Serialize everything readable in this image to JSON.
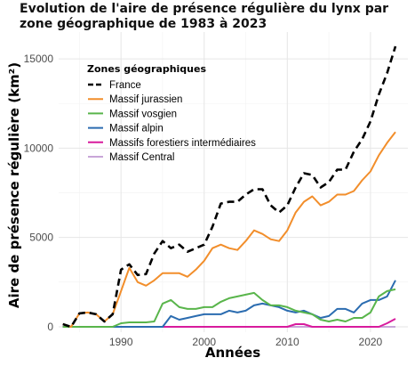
{
  "chart_data": {
    "type": "line",
    "title": "Evolution de l'aire de présence régulière du lynx par zone géographique de 1983 à 2023",
    "xlabel": "Années",
    "ylabel": "Aire de présence régulière (km²)",
    "xlim": [
      1982.5,
      2024.5
    ],
    "ylim": [
      -300,
      16500
    ],
    "x_ticks": [
      1990,
      2000,
      2010,
      2020
    ],
    "y_ticks": [
      0,
      5000,
      10000,
      15000
    ],
    "x_tick_labels": [
      "1990",
      "2000",
      "2010",
      "2020"
    ],
    "y_tick_labels": [
      "0",
      "5000",
      "10000",
      "15000"
    ],
    "grid": true,
    "legend": {
      "title": "Zones géographiques",
      "position": "top-left"
    },
    "x": [
      1983,
      1984,
      1985,
      1986,
      1987,
      1988,
      1989,
      1990,
      1991,
      1992,
      1993,
      1994,
      1995,
      1996,
      1997,
      1998,
      1999,
      2000,
      2001,
      2002,
      2003,
      2004,
      2005,
      2006,
      2007,
      2008,
      2009,
      2010,
      2011,
      2012,
      2013,
      2014,
      2015,
      2016,
      2017,
      2018,
      2019,
      2020,
      2021,
      2022,
      2023
    ],
    "series": [
      {
        "name": "France",
        "color": "#000000",
        "dash": true,
        "values": [
          150,
          0,
          750,
          800,
          700,
          300,
          700,
          3200,
          3500,
          2900,
          2950,
          4100,
          4800,
          4400,
          4600,
          4200,
          4400,
          4600,
          5600,
          6900,
          7000,
          7000,
          7400,
          7700,
          7700,
          6800,
          6400,
          6800,
          7800,
          8600,
          8500,
          7800,
          8100,
          8800,
          8800,
          9800,
          10500,
          11500,
          13000,
          14200,
          15700
        ]
      },
      {
        "name": "Massif jurassien",
        "color": "#f28e2b",
        "dash": false,
        "values": [
          150,
          0,
          750,
          800,
          700,
          300,
          700,
          2000,
          3300,
          2500,
          2300,
          2600,
          3000,
          3000,
          3000,
          2800,
          3200,
          3700,
          4400,
          4600,
          4400,
          4300,
          4800,
          5400,
          5200,
          4900,
          4800,
          5400,
          6400,
          7000,
          7300,
          6800,
          7000,
          7400,
          7400,
          7600,
          8200,
          8700,
          9600,
          10300,
          10900
        ]
      },
      {
        "name": "Massif vosgien",
        "color": "#59b54b",
        "dash": false,
        "values": [
          0,
          0,
          0,
          0,
          0,
          0,
          0,
          200,
          250,
          250,
          250,
          300,
          1300,
          1500,
          1100,
          1000,
          1000,
          1100,
          1100,
          1400,
          1600,
          1700,
          1800,
          1900,
          1500,
          1200,
          1200,
          1100,
          900,
          800,
          700,
          400,
          300,
          400,
          300,
          500,
          500,
          800,
          1700,
          2000,
          2100
        ]
      },
      {
        "name": "Massif alpin",
        "color": "#2b6cb0",
        "dash": false,
        "values": [
          0,
          0,
          0,
          0,
          0,
          0,
          0,
          0,
          0,
          0,
          0,
          0,
          0,
          600,
          400,
          500,
          600,
          700,
          700,
          700,
          900,
          800,
          900,
          1200,
          1300,
          1200,
          1100,
          900,
          800,
          900,
          700,
          500,
          600,
          1000,
          1000,
          800,
          1300,
          1500,
          1500,
          1700,
          2600
        ]
      },
      {
        "name": "Massifs forestiers intermédiaires",
        "color": "#d81b9d",
        "dash": false,
        "values": [
          0,
          0,
          0,
          0,
          0,
          0,
          0,
          0,
          0,
          0,
          0,
          0,
          0,
          0,
          0,
          0,
          0,
          0,
          0,
          0,
          0,
          0,
          0,
          0,
          0,
          0,
          0,
          0,
          150,
          150,
          0,
          0,
          0,
          0,
          0,
          0,
          0,
          0,
          0,
          200,
          450
        ]
      },
      {
        "name": "Massif Central",
        "color": "#c9a6d8",
        "dash": false,
        "values": [
          0,
          0,
          0,
          0,
          0,
          0,
          0,
          0,
          0,
          0,
          0,
          0,
          0,
          0,
          0,
          0,
          0,
          0,
          0,
          0,
          0,
          0,
          0,
          0,
          0,
          0,
          0,
          0,
          0,
          0,
          0,
          0,
          0,
          0,
          0,
          0,
          0,
          0,
          0,
          0,
          0
        ]
      }
    ]
  }
}
